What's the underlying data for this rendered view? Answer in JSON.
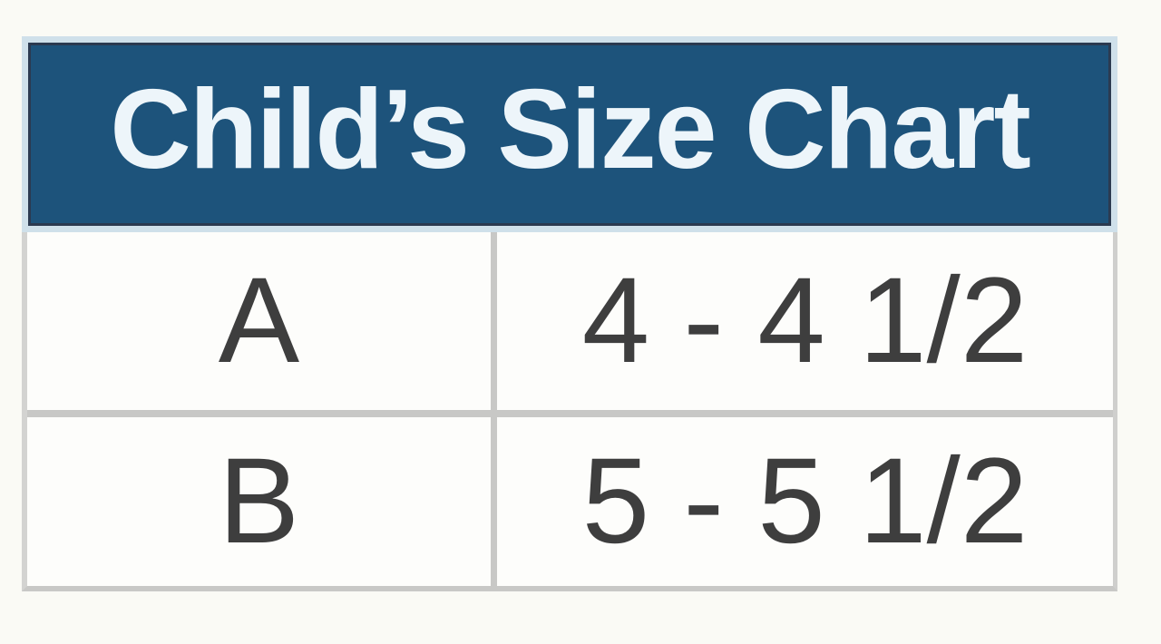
{
  "colors": {
    "page_background": "#fafaf5",
    "header_fill": "#1d537b",
    "header_inner_border": "#2b3a50",
    "header_outer_frame": "#cfe0ea",
    "header_text": "#edf5fa",
    "grid_line": "#c8c8c6",
    "cell_background": "#fdfdfb",
    "cell_text": "#3e3e3e"
  },
  "chart_data": {
    "type": "table",
    "title": "Child’s Size Chart",
    "rows": [
      [
        "A",
        "4 - 4 1/2"
      ],
      [
        "B",
        "5 - 5 1/2"
      ]
    ]
  }
}
